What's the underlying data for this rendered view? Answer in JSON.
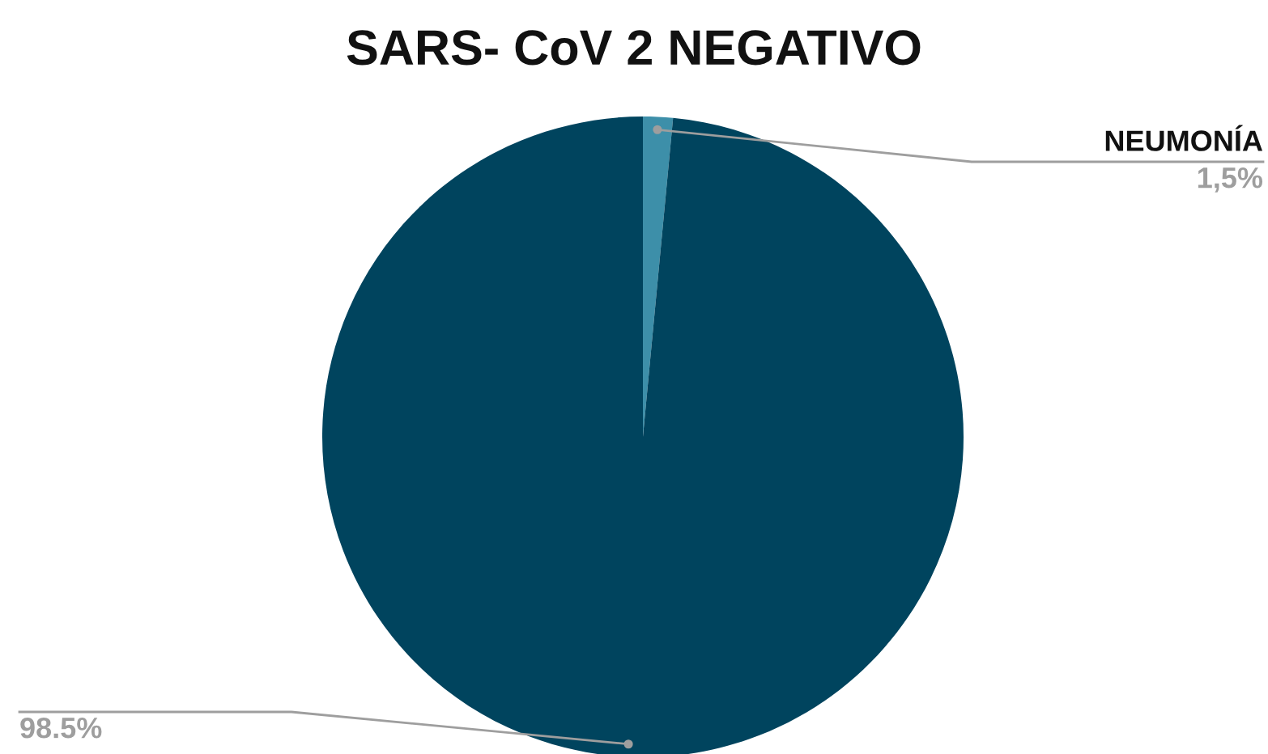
{
  "chart_data": {
    "type": "pie",
    "title": "SARS- CoV 2 NEGATIVO",
    "categories": [
      "NEUMONÍA",
      null
    ],
    "values": [
      1.5,
      98.5
    ],
    "colors": [
      "#3d8fa9",
      "#00445e"
    ],
    "value_labels": [
      "1,5%",
      "98.5%"
    ],
    "legend": false
  }
}
